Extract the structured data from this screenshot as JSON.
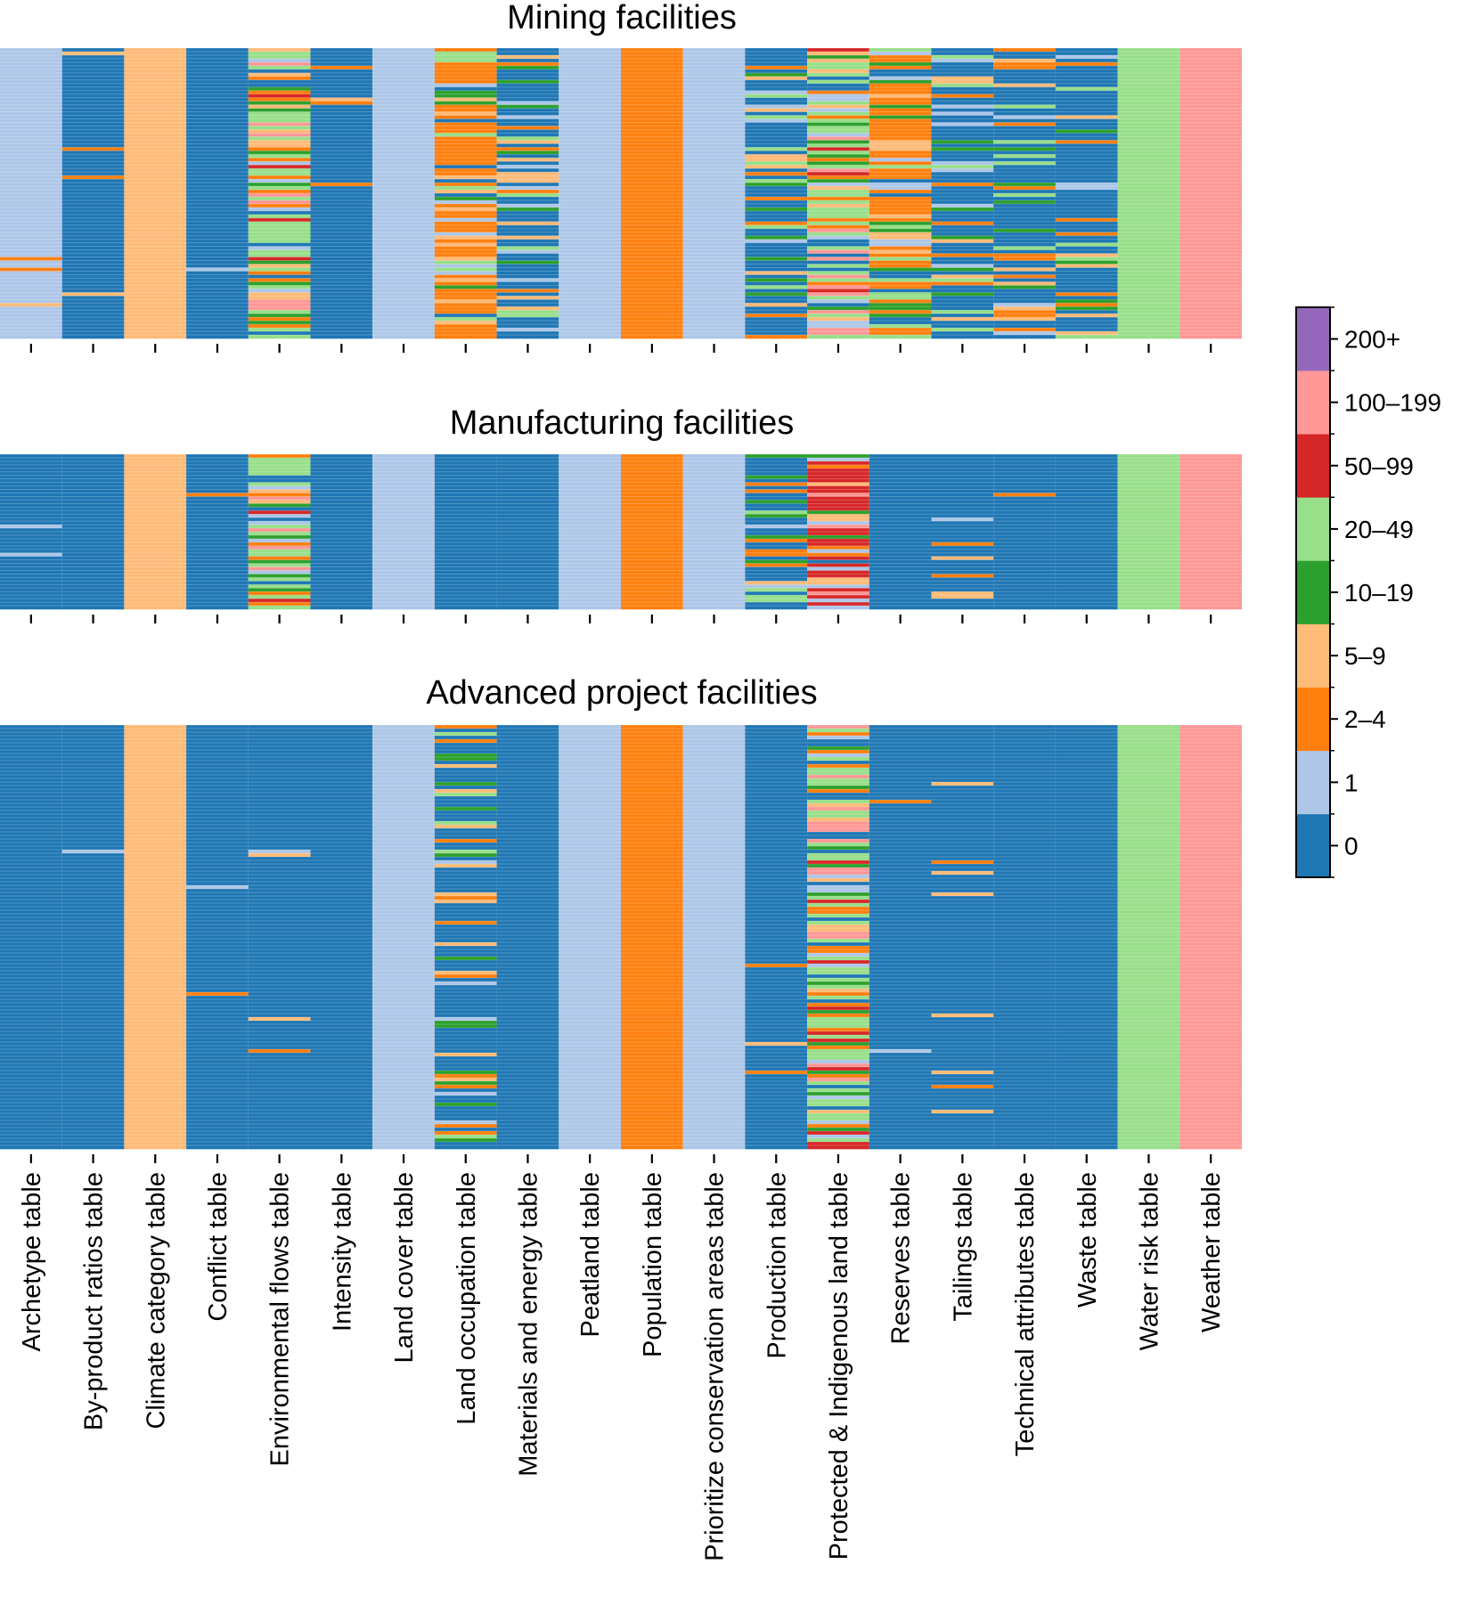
{
  "chart_data": {
    "type": "heatmap",
    "columns": [
      "Archetype table",
      "By-product ratios table",
      "Climate category table",
      "Conflict table",
      "Environmental flows table",
      "Intensity table",
      "Land cover table",
      "Land occupation table",
      "Materials and energy table",
      "Peatland table",
      "Population table",
      "Prioritize conservation areas table",
      "Production table",
      "Protected & Indigenous land table",
      "Reserves table",
      "Tailings table",
      "Technical attributes table",
      "Waste table",
      "Water risk table",
      "Weather table"
    ],
    "colorbar": {
      "categories": [
        "0",
        "1",
        "2–4",
        "5–9",
        "10–19",
        "20–49",
        "50–99",
        "100–199",
        "200+"
      ],
      "colors": [
        "#1f77b4",
        "#aec7e8",
        "#ff7f0e",
        "#ffbb78",
        "#2ca02c",
        "#98df8a",
        "#d62728",
        "#ff9896",
        "#9467bd"
      ]
    },
    "panels": [
      {
        "title": "Mining facilities",
        "base_values": [
          1,
          0,
          3,
          0,
          5,
          0,
          1,
          2,
          0,
          1,
          2,
          1,
          0,
          5,
          2,
          0,
          0,
          0,
          5,
          7
        ],
        "mix": [
          "sparse-rows",
          "sparse-rows",
          "constant",
          "nearly-constant",
          "highly-mixed",
          "sparse-rows",
          "constant",
          "mixed",
          "mixed",
          "constant",
          "constant",
          "constant",
          "mixed",
          "highly-mixed",
          "mixed",
          "mixed",
          "mixed",
          "mixed",
          "constant",
          "constant"
        ]
      },
      {
        "title": "Manufacturing facilities",
        "base_values": [
          0,
          0,
          3,
          0,
          5,
          0,
          1,
          0,
          0,
          1,
          2,
          1,
          0,
          6,
          0,
          0,
          0,
          0,
          5,
          7
        ],
        "mix": [
          "nearly-constant",
          "constant",
          "constant",
          "nearly-constant",
          "highly-mixed",
          "constant",
          "constant",
          "sparse-rows",
          "constant",
          "constant",
          "constant",
          "constant",
          "mixed",
          "highly-mixed",
          "constant",
          "sparse-rows",
          "nearly-constant",
          "constant",
          "constant",
          "constant"
        ]
      },
      {
        "title": "Advanced project facilities",
        "base_values": [
          0,
          0,
          3,
          0,
          0,
          0,
          1,
          0,
          0,
          1,
          2,
          1,
          0,
          5,
          0,
          0,
          0,
          0,
          5,
          7
        ],
        "mix": [
          "constant",
          "nearly-constant",
          "constant",
          "nearly-constant",
          "sparse-rows",
          "constant",
          "constant",
          "mixed",
          "constant",
          "constant",
          "constant",
          "constant",
          "sparse-rows",
          "highly-mixed",
          "nearly-constant",
          "sparse-rows",
          "constant",
          "constant",
          "constant",
          "constant"
        ]
      }
    ]
  }
}
